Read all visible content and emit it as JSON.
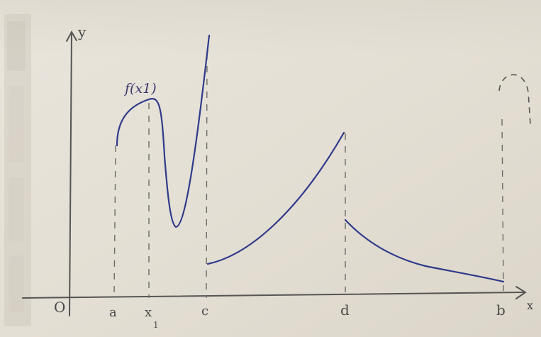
{
  "labels": {
    "y_axis": "y",
    "x_axis": "x",
    "origin": "O",
    "a": "a",
    "x1": "x",
    "x1_sub": "1",
    "c": "c",
    "d": "d",
    "b": "b",
    "f_x1": "f(x1)"
  },
  "colors": {
    "paper": "#e6e1d7",
    "pencil": "#555555",
    "ink": "#2f3a8a",
    "left_strip": "#cfcabd"
  }
}
